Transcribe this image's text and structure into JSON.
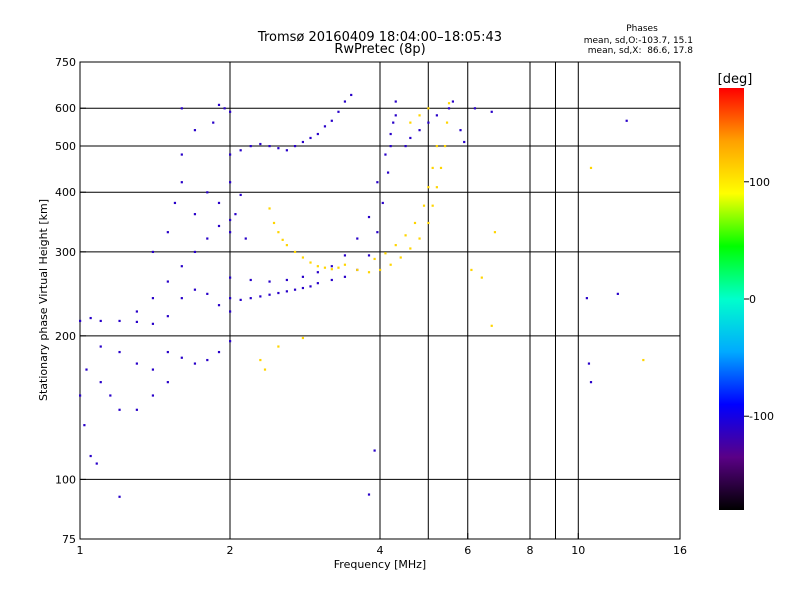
{
  "chart_data": {
    "type": "scatter",
    "title": "Tromsø 20160409 18:04:00–18:05:43",
    "subtitle": "RwPretec (8p)",
    "xlabel": "Frequency [MHz]",
    "ylabel": "Stationary phase Virtual Height [km]",
    "x_scale": "log",
    "y_scale": "log",
    "xlim": [
      1,
      16
    ],
    "ylim": [
      75,
      750
    ],
    "x_ticks": [
      1,
      2,
      4,
      6,
      8,
      10,
      16
    ],
    "y_ticks": [
      75,
      100,
      200,
      300,
      400,
      500,
      600,
      750
    ],
    "x_grid": [
      2,
      4,
      5,
      6,
      8,
      9,
      10
    ],
    "y_grid": [
      100,
      200,
      300,
      400,
      500,
      600
    ],
    "stats": {
      "heading": "Phases",
      "line_o": "mean, sd,O:-103.7, 15.1",
      "line_x": "mean, sd,X:  86.6, 17.8"
    },
    "colorbar": {
      "label": "[deg]",
      "min": -180,
      "max": 180,
      "ticks": [
        100,
        0,
        -100
      ],
      "colors": [
        "#000000",
        "#5a0086",
        "#0000ff",
        "#00aaff",
        "#00ffcc",
        "#00ff00",
        "#ffff00",
        "#ffa000",
        "#ff0000"
      ]
    },
    "series": [
      {
        "name": "",
        "phase": -110,
        "points": [
          [
            1.0,
            215
          ],
          [
            1.05,
            218
          ],
          [
            1.1,
            215
          ],
          [
            1.2,
            215
          ],
          [
            1.3,
            214
          ],
          [
            1.4,
            212
          ],
          [
            1.0,
            150
          ],
          [
            1.02,
            130
          ],
          [
            1.05,
            112
          ],
          [
            1.08,
            108
          ],
          [
            1.03,
            170
          ],
          [
            1.1,
            160
          ],
          [
            1.15,
            150
          ],
          [
            1.2,
            140
          ],
          [
            1.3,
            140
          ],
          [
            1.4,
            150
          ],
          [
            1.5,
            160
          ],
          [
            1.1,
            190
          ],
          [
            1.2,
            185
          ],
          [
            1.3,
            175
          ],
          [
            1.4,
            170
          ],
          [
            1.5,
            185
          ],
          [
            1.6,
            180
          ],
          [
            1.7,
            175
          ],
          [
            1.8,
            178
          ],
          [
            1.9,
            185
          ],
          [
            2.0,
            195
          ],
          [
            1.3,
            225
          ],
          [
            1.4,
            240
          ],
          [
            1.5,
            260
          ],
          [
            1.6,
            280
          ],
          [
            1.7,
            300
          ],
          [
            1.8,
            320
          ],
          [
            1.9,
            340
          ],
          [
            2.0,
            350
          ],
          [
            1.4,
            300
          ],
          [
            1.5,
            330
          ],
          [
            1.55,
            380
          ],
          [
            1.6,
            420
          ],
          [
            1.6,
            480
          ],
          [
            1.7,
            360
          ],
          [
            1.8,
            400
          ],
          [
            1.9,
            380
          ],
          [
            2.0,
            420
          ],
          [
            1.6,
            600
          ],
          [
            1.7,
            540
          ],
          [
            1.85,
            560
          ],
          [
            1.9,
            610
          ],
          [
            1.95,
            600
          ],
          [
            2.0,
            590
          ],
          [
            2.0,
            480
          ],
          [
            2.1,
            490
          ],
          [
            2.2,
            500
          ],
          [
            2.3,
            505
          ],
          [
            2.4,
            500
          ],
          [
            2.5,
            495
          ],
          [
            2.6,
            490
          ],
          [
            2.7,
            500
          ],
          [
            2.8,
            510
          ],
          [
            2.9,
            520
          ],
          [
            3.0,
            530
          ],
          [
            3.1,
            550
          ],
          [
            3.2,
            565
          ],
          [
            3.3,
            590
          ],
          [
            3.4,
            620
          ],
          [
            3.5,
            640
          ],
          [
            2.0,
            240
          ],
          [
            2.1,
            238
          ],
          [
            2.2,
            240
          ],
          [
            2.3,
            242
          ],
          [
            2.4,
            244
          ],
          [
            2.5,
            246
          ],
          [
            2.6,
            248
          ],
          [
            2.7,
            250
          ],
          [
            2.8,
            252
          ],
          [
            2.9,
            254
          ],
          [
            3.0,
            258
          ],
          [
            3.2,
            262
          ],
          [
            3.4,
            266
          ],
          [
            3.6,
            275
          ],
          [
            3.8,
            295
          ],
          [
            3.95,
            330
          ],
          [
            4.05,
            380
          ],
          [
            4.15,
            440
          ],
          [
            4.2,
            500
          ],
          [
            4.25,
            560
          ],
          [
            4.3,
            620
          ],
          [
            2.0,
            265
          ],
          [
            2.2,
            262
          ],
          [
            2.4,
            260
          ],
          [
            2.6,
            262
          ],
          [
            2.8,
            266
          ],
          [
            3.0,
            272
          ],
          [
            3.2,
            280
          ],
          [
            3.4,
            295
          ],
          [
            3.6,
            320
          ],
          [
            3.8,
            355
          ],
          [
            3.95,
            420
          ],
          [
            4.1,
            480
          ],
          [
            4.2,
            530
          ],
          [
            4.3,
            580
          ],
          [
            1.5,
            220
          ],
          [
            1.6,
            240
          ],
          [
            1.7,
            250
          ],
          [
            1.8,
            245
          ],
          [
            1.9,
            232
          ],
          [
            2.0,
            225
          ],
          [
            2.0,
            330
          ],
          [
            2.05,
            360
          ],
          [
            2.1,
            395
          ],
          [
            2.15,
            320
          ],
          [
            4.5,
            500
          ],
          [
            4.6,
            520
          ],
          [
            4.8,
            540
          ],
          [
            5.0,
            560
          ],
          [
            5.2,
            580
          ],
          [
            5.5,
            600
          ],
          [
            5.6,
            620
          ],
          [
            5.8,
            540
          ],
          [
            5.9,
            510
          ],
          [
            1.2,
            92
          ],
          [
            3.8,
            93
          ],
          [
            3.9,
            115
          ],
          [
            6.2,
            600
          ],
          [
            6.7,
            590
          ],
          [
            12.5,
            565
          ],
          [
            10.5,
            175
          ],
          [
            10.6,
            160
          ],
          [
            10.4,
            240
          ],
          [
            12,
            245
          ]
        ]
      },
      {
        "name": "",
        "phase": 110,
        "points": [
          [
            2.4,
            370
          ],
          [
            2.45,
            345
          ],
          [
            2.5,
            330
          ],
          [
            2.55,
            318
          ],
          [
            2.6,
            310
          ],
          [
            2.7,
            300
          ],
          [
            2.8,
            292
          ],
          [
            2.9,
            285
          ],
          [
            3.0,
            280
          ],
          [
            3.1,
            278
          ],
          [
            3.2,
            276
          ],
          [
            3.3,
            278
          ],
          [
            3.4,
            282
          ],
          [
            3.6,
            275
          ],
          [
            3.8,
            272
          ],
          [
            4.0,
            275
          ],
          [
            4.2,
            282
          ],
          [
            4.4,
            292
          ],
          [
            4.6,
            305
          ],
          [
            4.8,
            320
          ],
          [
            5.0,
            345
          ],
          [
            5.1,
            375
          ],
          [
            5.2,
            410
          ],
          [
            5.3,
            450
          ],
          [
            5.4,
            500
          ],
          [
            5.45,
            560
          ],
          [
            5.5,
            615
          ],
          [
            3.9,
            290
          ],
          [
            4.1,
            298
          ],
          [
            4.3,
            310
          ],
          [
            4.5,
            325
          ],
          [
            4.7,
            345
          ],
          [
            4.9,
            375
          ],
          [
            5.0,
            410
          ],
          [
            5.1,
            450
          ],
          [
            5.2,
            500
          ],
          [
            4.6,
            560
          ],
          [
            4.8,
            580
          ],
          [
            5.0,
            600
          ],
          [
            2.3,
            178
          ],
          [
            2.35,
            170
          ],
          [
            2.5,
            190
          ],
          [
            2.8,
            198
          ],
          [
            6.1,
            275
          ],
          [
            6.4,
            265
          ],
          [
            6.7,
            210
          ],
          [
            6.8,
            330
          ],
          [
            10.6,
            450
          ],
          [
            13.5,
            178
          ]
        ]
      }
    ]
  }
}
